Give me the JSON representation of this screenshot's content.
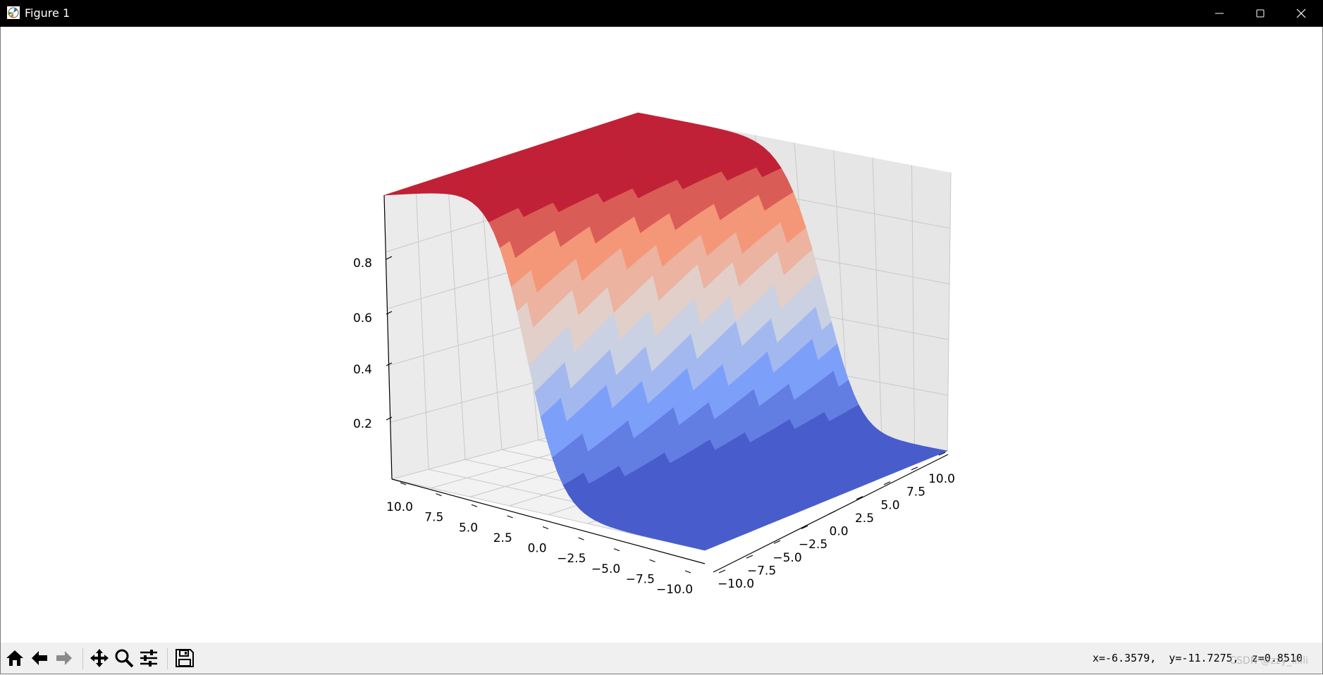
{
  "window": {
    "title": "Figure 1",
    "icons": [
      "matplotlib-logo-icon",
      "minimize-icon",
      "maximize-icon",
      "close-icon"
    ]
  },
  "toolbar": {
    "buttons": [
      {
        "name": "home-button",
        "icon": "home-icon"
      },
      {
        "name": "back-button",
        "icon": "arrow-left-icon"
      },
      {
        "name": "forward-button",
        "icon": "arrow-right-icon"
      },
      {
        "name": "pan-button",
        "icon": "move-icon"
      },
      {
        "name": "zoom-button",
        "icon": "magnifier-icon"
      },
      {
        "name": "configure-subplots-button",
        "icon": "sliders-icon"
      },
      {
        "name": "save-button",
        "icon": "floppy-disk-icon"
      }
    ]
  },
  "status": {
    "coordinates": "x=-6.3579,  y=-11.7275,  z=0.8510",
    "watermark": "CSDN @zzy_lilili"
  },
  "chart_data": {
    "type": "surface",
    "colormap": "coolwarm",
    "colors": {
      "low": "#3b4cc0",
      "mid": "#dddddd",
      "high": "#b40426"
    },
    "x_range": [
      -10,
      10
    ],
    "y_range": [
      -10,
      10
    ],
    "z_range": [
      0,
      1
    ],
    "x_ticks": [
      "−10.0",
      "−7.5",
      "−5.0",
      "−2.5",
      "0.0",
      "2.5",
      "5.0",
      "7.5",
      "10.0"
    ],
    "y_ticks": [
      "−10.0",
      "−7.5",
      "−5.0",
      "−2.5",
      "0.0",
      "2.5",
      "5.0",
      "7.5",
      "10.0"
    ],
    "z_ticks": [
      "0.2",
      "0.4",
      "0.6",
      "0.8"
    ],
    "z_tick_values": [
      0.2,
      0.4,
      0.6,
      0.8
    ],
    "surface_function": "sigmoid",
    "grid": true
  }
}
